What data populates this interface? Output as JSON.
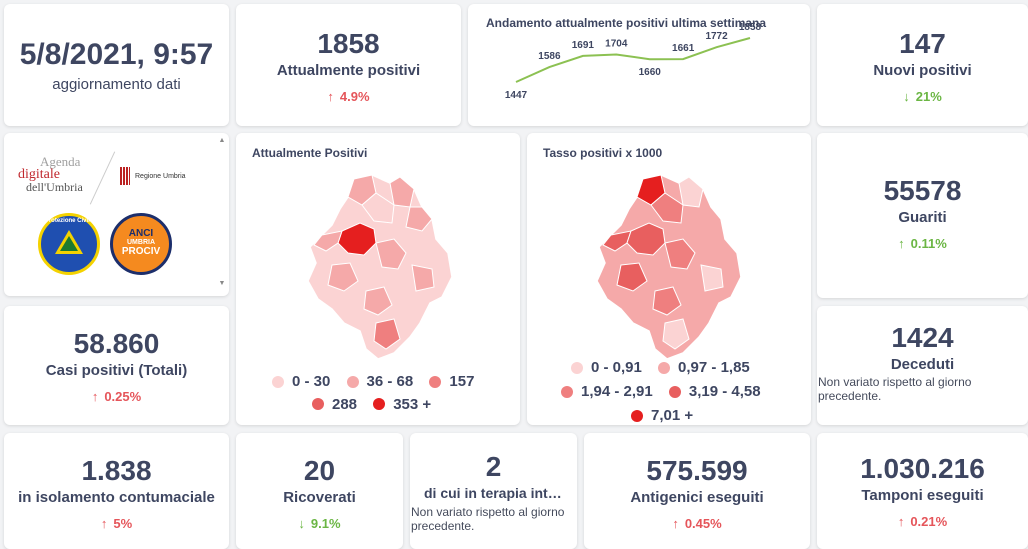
{
  "update": {
    "datetime": "5/8/2021, 9:57",
    "label": "aggiornamento dati"
  },
  "attuali": {
    "value": "1858",
    "label": "Attualmente positivi",
    "change": "4.9%"
  },
  "trend": {
    "title": "Andamento attualmente positivi ultima settimana",
    "chart_data": {
      "type": "line",
      "title": "Andamento attualmente positivi ultima settimana",
      "values": [
        1447,
        1586,
        1691,
        1704,
        1660,
        1661,
        1772,
        1858
      ],
      "labels": [
        "1447",
        "1586",
        "1691",
        "1704",
        "1660",
        "1661",
        "1772",
        "1858"
      ],
      "color": "#8cc152"
    }
  },
  "nuovi": {
    "value": "147",
    "label": "Nuovi positivi",
    "change": "21%"
  },
  "logos": {
    "agenda_line1": "Agenda",
    "agenda_line2": "digitale",
    "agenda_line3": "dell'Umbria",
    "regione": "Regione Umbria",
    "protezione": "Protezione Civile",
    "anci_line1": "ANCI",
    "anci_line2": "UMBRIA",
    "anci_line3": "PROCIV"
  },
  "map1": {
    "title": "Attualmente Positivi",
    "legend": [
      {
        "label": "0 - 30",
        "color": "#fbd3d3"
      },
      {
        "label": "36 - 68",
        "color": "#f5a9a9"
      },
      {
        "label": "157",
        "color": "#ef7f7f"
      },
      {
        "label": "288",
        "color": "#e85f5f"
      },
      {
        "label": "353 +",
        "color": "#e51f1f"
      }
    ]
  },
  "map2": {
    "title": "Tasso positivi x 1000",
    "legend": [
      {
        "label": "0 - 0,91",
        "color": "#fbd3d3"
      },
      {
        "label": "0,97 - 1,85",
        "color": "#f5a9a9"
      },
      {
        "label": "1,94 - 2,91",
        "color": "#ef7f7f"
      },
      {
        "label": "3,19 - 4,58",
        "color": "#e85f5f"
      },
      {
        "label": "7,01 +",
        "color": "#e51f1f"
      }
    ]
  },
  "guariti": {
    "value": "55578",
    "label": "Guariti",
    "change": "0.11%"
  },
  "casi": {
    "value": "58.860",
    "label": "Casi positivi (Totali)",
    "change": "0.25%"
  },
  "deceduti": {
    "value": "1424",
    "label": "Deceduti",
    "note": "Non variato rispetto al giorno precedente."
  },
  "isolamento": {
    "value": "1.838",
    "label": "in isolamento contumaciale",
    "change": "5%"
  },
  "ricoverati": {
    "value": "20",
    "label": "Ricoverati",
    "change": "9.1%"
  },
  "terapia": {
    "value": "2",
    "label": "di cui in terapia intensiva",
    "note": "Non variato rispetto al giorno precedente."
  },
  "antigenici": {
    "value": "575.599",
    "label": "Antigenici eseguiti",
    "change": "0.45%"
  },
  "tamponi": {
    "value": "1.030.216",
    "label": "Tamponi eseguiti",
    "change": "0.21%"
  },
  "icons": {
    "up": "arrow-up-icon",
    "down": "arrow-down-icon"
  },
  "glyphs": {
    "up": "↑",
    "down": "↓",
    "scroll_up": "▲",
    "scroll_down": "▼"
  },
  "colors": {
    "up": "#e5555a",
    "down": "#6bb644",
    "text": "#3e4661",
    "line": "#8cc152"
  }
}
